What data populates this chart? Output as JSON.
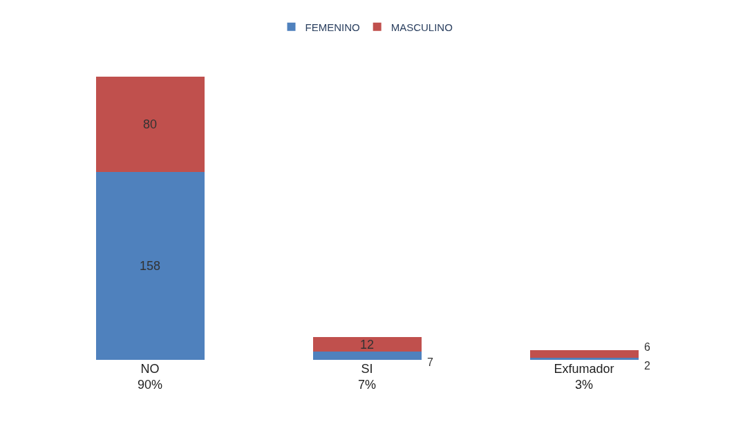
{
  "chart_data": {
    "type": "bar",
    "stacked": true,
    "data_labels": true,
    "legend": "top",
    "tick_labels": "x",
    "categories": [
      "NO\n90%",
      "SI\n7%",
      "Exfumador\n3%"
    ],
    "series": [
      {
        "name": "FEMENINO",
        "color": "#4f81bd",
        "values": [
          158,
          7,
          2
        ]
      },
      {
        "name": "MASCULINO",
        "color": "#c0504d",
        "values": [
          80,
          12,
          6
        ]
      }
    ]
  }
}
